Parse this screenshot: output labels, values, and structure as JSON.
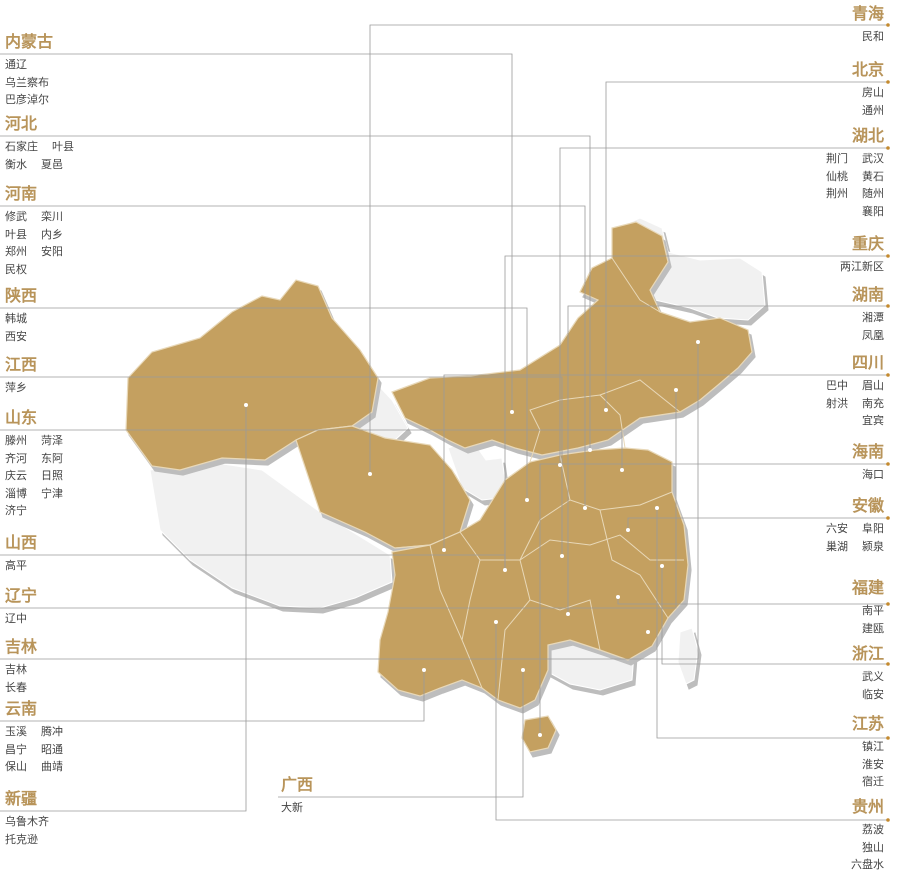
{
  "colors": {
    "accent": "#b8945a",
    "served": "#c4a061",
    "unserved": "#f1f1f1",
    "line": "#9a9a9a"
  },
  "provinces": [
    {
      "id": "neimenggu",
      "name": "内蒙古",
      "rows": [
        [
          "通辽"
        ],
        [
          "乌兰察布"
        ],
        [
          "巴彦淖尔"
        ]
      ]
    },
    {
      "id": "hebei",
      "name": "河北",
      "rows": [
        [
          "石家庄",
          "叶县"
        ],
        [
          "衡水",
          "夏邑"
        ]
      ]
    },
    {
      "id": "henan",
      "name": "河南",
      "rows": [
        [
          "修武",
          "栾川"
        ],
        [
          "叶县",
          "内乡"
        ],
        [
          "郑州",
          "安阳"
        ],
        [
          "民权"
        ]
      ]
    },
    {
      "id": "shaanxi",
      "name": "陕西",
      "rows": [
        [
          "韩城"
        ],
        [
          "西安"
        ]
      ]
    },
    {
      "id": "jiangxi",
      "name": "江西",
      "rows": [
        [
          "萍乡"
        ]
      ]
    },
    {
      "id": "shandong",
      "name": "山东",
      "rows": [
        [
          "滕州",
          "菏泽"
        ],
        [
          "齐河",
          "东阿"
        ],
        [
          "庆云",
          "日照"
        ],
        [
          "淄博",
          "宁津"
        ],
        [
          "济宁"
        ]
      ]
    },
    {
      "id": "shanxi",
      "name": "山西",
      "rows": [
        [
          "高平"
        ]
      ]
    },
    {
      "id": "liaoning",
      "name": "辽宁",
      "rows": [
        [
          "辽中"
        ]
      ]
    },
    {
      "id": "jilin",
      "name": "吉林",
      "rows": [
        [
          "吉林"
        ],
        [
          "长春"
        ]
      ]
    },
    {
      "id": "yunnan",
      "name": "云南",
      "rows": [
        [
          "玉溪",
          "腾冲"
        ],
        [
          "昌宁",
          "昭通"
        ],
        [
          "保山",
          "曲靖"
        ]
      ]
    },
    {
      "id": "xinjiang",
      "name": "新疆",
      "rows": [
        [
          "乌鲁木齐"
        ],
        [
          "托克逊"
        ]
      ]
    },
    {
      "id": "guangxi",
      "name": "广西",
      "rows": [
        [
          "大新"
        ]
      ]
    },
    {
      "id": "qinghai",
      "name": "青海",
      "rows": [
        [
          "民和"
        ]
      ]
    },
    {
      "id": "beijing",
      "name": "北京",
      "rows": [
        [
          "房山"
        ],
        [
          "通州"
        ]
      ]
    },
    {
      "id": "hubei",
      "name": "湖北",
      "rows": [
        [
          "荆门",
          "武汉"
        ],
        [
          "仙桃",
          "黄石"
        ],
        [
          "荆州",
          "随州"
        ],
        [
          "襄阳"
        ]
      ]
    },
    {
      "id": "chongqing",
      "name": "重庆",
      "rows": [
        [
          "两江新区"
        ]
      ]
    },
    {
      "id": "hunan",
      "name": "湖南",
      "rows": [
        [
          "湘潭"
        ],
        [
          "凤凰"
        ]
      ]
    },
    {
      "id": "sichuan",
      "name": "四川",
      "rows": [
        [
          "巴中",
          "眉山"
        ],
        [
          "射洪",
          "南充"
        ],
        [
          "宜宾"
        ]
      ]
    },
    {
      "id": "hainan",
      "name": "海南",
      "rows": [
        [
          "海口"
        ]
      ]
    },
    {
      "id": "anhui",
      "name": "安徽",
      "rows": [
        [
          "六安",
          "阜阳"
        ],
        [
          "巢湖",
          "颍泉"
        ]
      ]
    },
    {
      "id": "fujian",
      "name": "福建",
      "rows": [
        [
          "南平"
        ],
        [
          "建瓯"
        ]
      ]
    },
    {
      "id": "zhejiang",
      "name": "浙江",
      "rows": [
        [
          "武义"
        ],
        [
          "临安"
        ]
      ]
    },
    {
      "id": "jiangsu",
      "name": "江苏",
      "rows": [
        [
          "镇江"
        ],
        [
          "淮安"
        ],
        [
          "宿迁"
        ]
      ]
    },
    {
      "id": "guizhou",
      "name": "贵州",
      "rows": [
        [
          "荔波"
        ],
        [
          "独山"
        ],
        [
          "六盘水"
        ]
      ]
    }
  ]
}
